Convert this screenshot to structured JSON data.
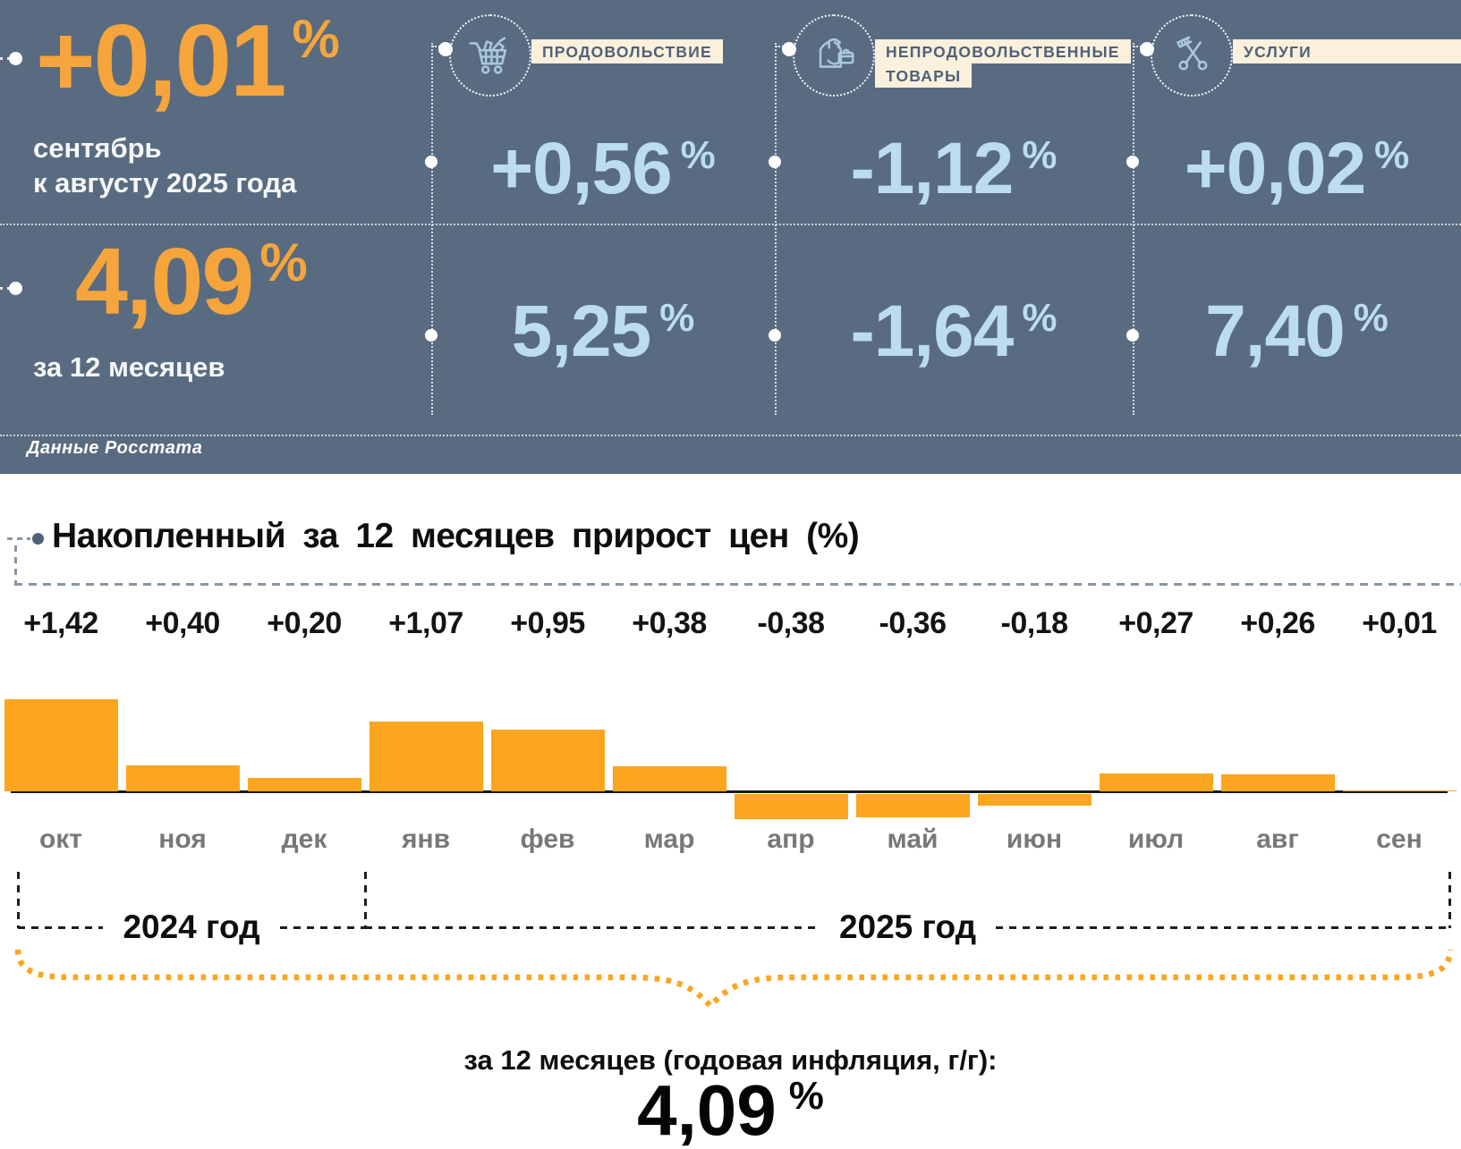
{
  "pct": "%",
  "hero": {
    "monthly": {
      "value": "+0,01",
      "caption1": "сентябрь",
      "caption2": "к августу 2025 года"
    },
    "annual": {
      "value": "4,09",
      "caption": "за 12 месяцев"
    },
    "source": "Данные Росстата",
    "colors": {
      "background": "#596B80",
      "accent_orange": "#F5A53C",
      "value_blue": "#BCDCEF",
      "label_bg": "#FAF0DC"
    },
    "categories": [
      {
        "name": "food",
        "icon": "cart-icon",
        "label_lines": [
          "ПРОДОВОЛЬСТВИЕ"
        ],
        "monthly": "+0,56",
        "annual": "5,25"
      },
      {
        "name": "non-food",
        "icon": "clothes-icon",
        "label_lines": [
          "НЕПРОДОВОЛЬСТВЕННЫЕ",
          "ТОВАРЫ"
        ],
        "monthly": "-1,12",
        "annual": "-1,64"
      },
      {
        "name": "services",
        "icon": "scissors-icon",
        "label_lines": [
          "УСЛУГИ"
        ],
        "monthly": "+0,02",
        "annual": "7,40"
      }
    ]
  },
  "chart_data": {
    "type": "bar",
    "title": "Накопленный за 12 месяцев прирост цен (%)",
    "categories": [
      "окт",
      "ноя",
      "дек",
      "янв",
      "фев",
      "мар",
      "апр",
      "май",
      "июн",
      "июл",
      "авг",
      "сен"
    ],
    "values": [
      1.42,
      0.4,
      0.2,
      1.07,
      0.95,
      0.38,
      -0.38,
      -0.36,
      -0.18,
      0.27,
      0.26,
      0.01
    ],
    "value_labels": [
      "+1,42",
      "+0,40",
      "+0,20",
      "+1,07",
      "+0,95",
      "+0,38",
      "-0,38",
      "-0,36",
      "-0,18",
      "+0,27",
      "+0,26",
      "+0,01"
    ],
    "xlabel": "",
    "ylabel": "",
    "ylim": [
      -0.5,
      1.5
    ],
    "grid": false,
    "legend": false,
    "bar_color": "#FCA51E",
    "year_groups": [
      {
        "label": "2024 год",
        "months": [
          "окт",
          "ноя",
          "дек"
        ]
      },
      {
        "label": "2025 год",
        "months": [
          "янв",
          "фев",
          "мар",
          "апр",
          "май",
          "июн",
          "июл",
          "авг",
          "сен"
        ]
      }
    ]
  },
  "chart_extras": {
    "year_2024": "2024 год",
    "year_2025": "2025 год",
    "footer_label": "за 12 месяцев (годовая инфляция, г/г):",
    "footer_value": "4,09"
  }
}
